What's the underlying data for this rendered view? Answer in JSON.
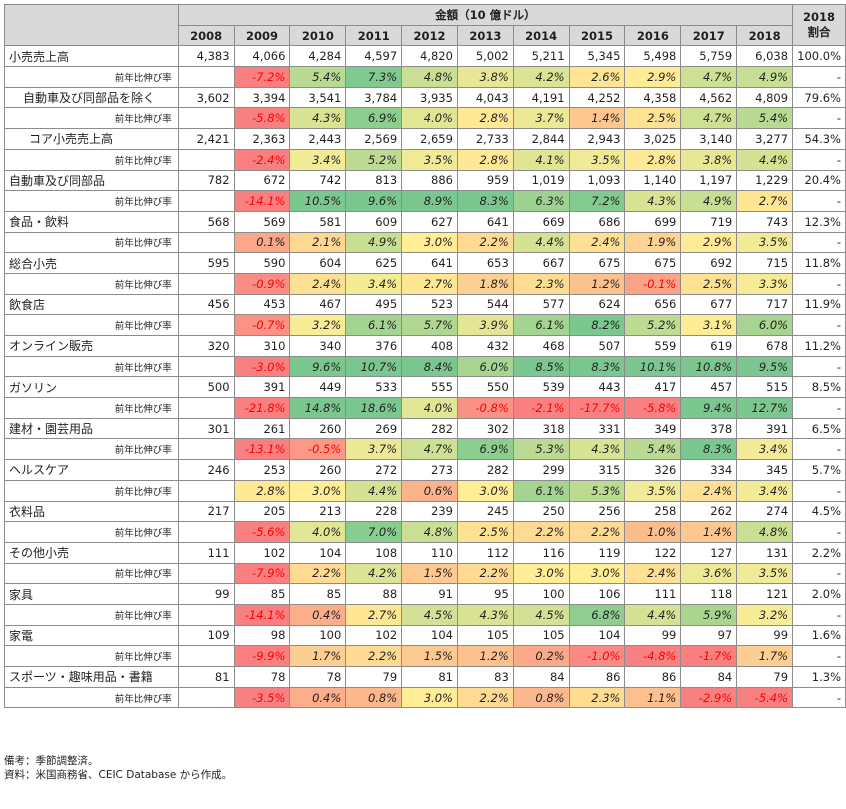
{
  "header": {
    "amount_label": "金額（10 億ドル）",
    "share_label_line1": "2018",
    "share_label_line2": "割合",
    "years": [
      "2008",
      "2009",
      "2010",
      "2011",
      "2012",
      "2013",
      "2014",
      "2015",
      "2016",
      "2017",
      "2018"
    ]
  },
  "growth_label": "前年比伸び率",
  "rows": [
    {
      "name": "小売売上高",
      "indent": 0,
      "values": [
        "4,383",
        "4,066",
        "4,284",
        "4,597",
        "4,820",
        "5,002",
        "5,211",
        "5,345",
        "5,498",
        "5,759",
        "6,038"
      ],
      "share": "100.0%",
      "growth": [
        "-7.2%",
        "5.4%",
        "7.3%",
        "4.8%",
        "3.8%",
        "4.2%",
        "2.6%",
        "2.9%",
        "4.7%",
        "4.9%"
      ],
      "growth_share": "-"
    },
    {
      "name": "自動車及び同部品を除く",
      "indent": 1,
      "values": [
        "3,602",
        "3,394",
        "3,541",
        "3,784",
        "3,935",
        "4,043",
        "4,191",
        "4,252",
        "4,358",
        "4,562",
        "4,809"
      ],
      "share": "79.6%",
      "growth": [
        "-5.8%",
        "4.3%",
        "6.9%",
        "4.0%",
        "2.8%",
        "3.7%",
        "1.4%",
        "2.5%",
        "4.7%",
        "5.4%"
      ],
      "growth_share": "-"
    },
    {
      "name": "コア小売売上高",
      "indent": 2,
      "values": [
        "2,421",
        "2,363",
        "2,443",
        "2,569",
        "2,659",
        "2,733",
        "2,844",
        "2,943",
        "3,025",
        "3,140",
        "3,277"
      ],
      "share": "54.3%",
      "growth": [
        "-2.4%",
        "3.4%",
        "5.2%",
        "3.5%",
        "2.8%",
        "4.1%",
        "3.5%",
        "2.8%",
        "3.8%",
        "4.4%"
      ],
      "growth_share": "-"
    },
    {
      "name": "自動車及び同部品",
      "indent": 0,
      "values": [
        "782",
        "672",
        "742",
        "813",
        "886",
        "959",
        "1,019",
        "1,093",
        "1,140",
        "1,197",
        "1,229"
      ],
      "share": "20.4%",
      "growth": [
        "-14.1%",
        "10.5%",
        "9.6%",
        "8.9%",
        "8.3%",
        "6.3%",
        "7.2%",
        "4.3%",
        "4.9%",
        "2.7%"
      ],
      "growth_share": "-"
    },
    {
      "name": "食品・飲料",
      "indent": 0,
      "values": [
        "568",
        "569",
        "581",
        "609",
        "627",
        "641",
        "669",
        "686",
        "699",
        "719",
        "743"
      ],
      "share": "12.3%",
      "growth": [
        "0.1%",
        "2.1%",
        "4.9%",
        "3.0%",
        "2.2%",
        "4.4%",
        "2.4%",
        "1.9%",
        "2.9%",
        "3.5%"
      ],
      "growth_share": "-"
    },
    {
      "name": "総合小売",
      "indent": 0,
      "values": [
        "595",
        "590",
        "604",
        "625",
        "641",
        "653",
        "667",
        "675",
        "675",
        "692",
        "715"
      ],
      "share": "11.8%",
      "growth": [
        "-0.9%",
        "2.4%",
        "3.4%",
        "2.7%",
        "1.8%",
        "2.3%",
        "1.2%",
        "-0.1%",
        "2.5%",
        "3.3%"
      ],
      "growth_share": "-"
    },
    {
      "name": "飲食店",
      "indent": 0,
      "values": [
        "456",
        "453",
        "467",
        "495",
        "523",
        "544",
        "577",
        "624",
        "656",
        "677",
        "717"
      ],
      "share": "11.9%",
      "growth": [
        "-0.7%",
        "3.2%",
        "6.1%",
        "5.7%",
        "3.9%",
        "6.1%",
        "8.2%",
        "5.2%",
        "3.1%",
        "6.0%"
      ],
      "growth_share": "-"
    },
    {
      "name": "オンライン販売",
      "indent": 0,
      "values": [
        "320",
        "310",
        "340",
        "376",
        "408",
        "432",
        "468",
        "507",
        "559",
        "619",
        "678"
      ],
      "share": "11.2%",
      "growth": [
        "-3.0%",
        "9.6%",
        "10.7%",
        "8.4%",
        "6.0%",
        "8.5%",
        "8.3%",
        "10.1%",
        "10.8%",
        "9.5%"
      ],
      "growth_share": "-"
    },
    {
      "name": "ガソリン",
      "indent": 0,
      "values": [
        "500",
        "391",
        "449",
        "533",
        "555",
        "550",
        "539",
        "443",
        "417",
        "457",
        "515"
      ],
      "share": "8.5%",
      "growth": [
        "-21.8%",
        "14.8%",
        "18.6%",
        "4.0%",
        "-0.8%",
        "-2.1%",
        "-17.7%",
        "-5.8%",
        "9.4%",
        "12.7%"
      ],
      "growth_share": "-"
    },
    {
      "name": "建材・園芸用品",
      "indent": 0,
      "values": [
        "301",
        "261",
        "260",
        "269",
        "282",
        "302",
        "318",
        "331",
        "349",
        "378",
        "391"
      ],
      "share": "6.5%",
      "growth": [
        "-13.1%",
        "-0.5%",
        "3.7%",
        "4.7%",
        "6.9%",
        "5.3%",
        "4.3%",
        "5.4%",
        "8.3%",
        "3.4%"
      ],
      "growth_share": "-"
    },
    {
      "name": "ヘルスケア",
      "indent": 0,
      "values": [
        "246",
        "253",
        "260",
        "272",
        "273",
        "282",
        "299",
        "315",
        "326",
        "334",
        "345"
      ],
      "share": "5.7%",
      "growth": [
        "2.8%",
        "3.0%",
        "4.4%",
        "0.6%",
        "3.0%",
        "6.1%",
        "5.3%",
        "3.5%",
        "2.4%",
        "3.4%"
      ],
      "growth_share": "-"
    },
    {
      "name": "衣料品",
      "indent": 0,
      "values": [
        "217",
        "205",
        "213",
        "228",
        "239",
        "245",
        "250",
        "256",
        "258",
        "262",
        "274"
      ],
      "share": "4.5%",
      "growth": [
        "-5.6%",
        "4.0%",
        "7.0%",
        "4.8%",
        "2.5%",
        "2.2%",
        "2.2%",
        "1.0%",
        "1.4%",
        "4.8%"
      ],
      "growth_share": "-"
    },
    {
      "name": "その他小売",
      "indent": 0,
      "values": [
        "111",
        "102",
        "104",
        "108",
        "110",
        "112",
        "116",
        "119",
        "122",
        "127",
        "131"
      ],
      "share": "2.2%",
      "growth": [
        "-7.9%",
        "2.2%",
        "4.2%",
        "1.5%",
        "2.2%",
        "3.0%",
        "3.0%",
        "2.4%",
        "3.6%",
        "3.5%"
      ],
      "growth_share": "-"
    },
    {
      "name": "家具",
      "indent": 0,
      "values": [
        "99",
        "85",
        "85",
        "88",
        "91",
        "95",
        "100",
        "106",
        "111",
        "118",
        "121"
      ],
      "share": "2.0%",
      "growth": [
        "-14.1%",
        "0.4%",
        "2.7%",
        "4.5%",
        "4.3%",
        "4.5%",
        "6.8%",
        "4.4%",
        "5.9%",
        "3.2%"
      ],
      "growth_share": "-"
    },
    {
      "name": "家電",
      "indent": 0,
      "values": [
        "109",
        "98",
        "100",
        "102",
        "104",
        "105",
        "105",
        "104",
        "99",
        "97",
        "99"
      ],
      "share": "1.6%",
      "growth": [
        "-9.9%",
        "1.7%",
        "2.2%",
        "1.5%",
        "1.2%",
        "0.2%",
        "-1.0%",
        "-4.8%",
        "-1.7%",
        "1.7%"
      ],
      "growth_share": "-"
    },
    {
      "name": "スポーツ・趣味用品・書籍",
      "indent": 0,
      "values": [
        "81",
        "78",
        "78",
        "79",
        "81",
        "83",
        "84",
        "86",
        "86",
        "84",
        "79"
      ],
      "share": "1.3%",
      "growth": [
        "-3.5%",
        "0.4%",
        "0.8%",
        "3.0%",
        "2.2%",
        "0.8%",
        "2.3%",
        "1.1%",
        "-2.9%",
        "-5.4%"
      ],
      "growth_share": "-"
    }
  ],
  "notes": {
    "line1": "備考：季節調整済。",
    "line2": "資料：米国商務省、CEIC Database から作成。"
  }
}
